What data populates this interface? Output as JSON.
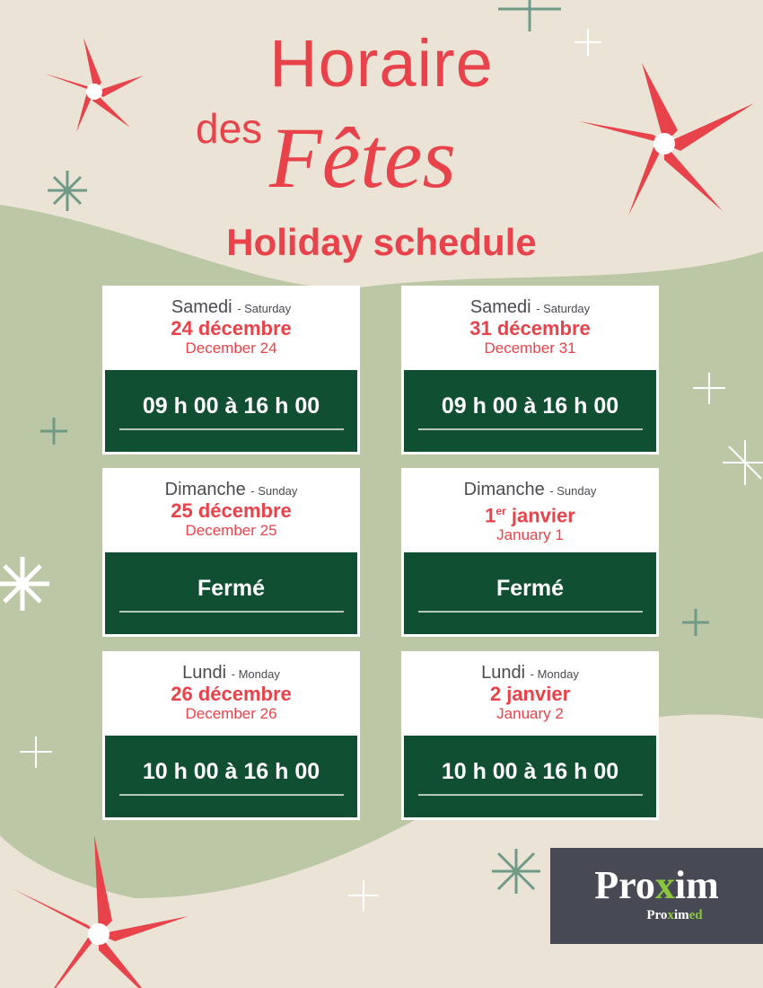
{
  "title": {
    "line1": "Horaire",
    "line2a": "des",
    "line2b": "Fêtes",
    "line3": "Holiday schedule"
  },
  "cards": [
    {
      "day_fr": "Samedi",
      "day_en": "- Saturday",
      "date_fr": "24 décembre",
      "date_sup": "",
      "date_en": "December 24",
      "hours": "09 h 00 à 16 h 00"
    },
    {
      "day_fr": "Samedi",
      "day_en": "- Saturday",
      "date_fr": "31 décembre",
      "date_sup": "",
      "date_en": "December 31",
      "hours": "09 h 00 à 16 h 00"
    },
    {
      "day_fr": "Dimanche",
      "day_en": "- Sunday",
      "date_fr": "25 décembre",
      "date_sup": "",
      "date_en": "December 25",
      "hours": "Fermé"
    },
    {
      "day_fr": "Dimanche",
      "day_en": "- Sunday",
      "date_fr": "janvier",
      "date_pre": "1",
      "date_sup": "er",
      "date_en": "January 1",
      "hours": "Fermé"
    },
    {
      "day_fr": "Lundi",
      "day_en": "- Monday",
      "date_fr": "26 décembre",
      "date_sup": "",
      "date_en": "December 26",
      "hours": "10 h 00 à 16 h 00"
    },
    {
      "day_fr": "Lundi",
      "day_en": "- Monday",
      "date_fr": "2 janvier",
      "date_sup": "",
      "date_en": "January 2",
      "hours": "10 h 00 à 16 h 00"
    }
  ],
  "logo": {
    "brand_a": "Pro",
    "brand_x": "x",
    "brand_b": "im",
    "sub_a": "Pro",
    "sub_x": "x",
    "sub_b": "im",
    "sub_c": "ed"
  },
  "colors": {
    "accent": "#e8434a",
    "green": "#114f33",
    "background": "#ebe4d6",
    "blob": "#bcc7a6"
  }
}
